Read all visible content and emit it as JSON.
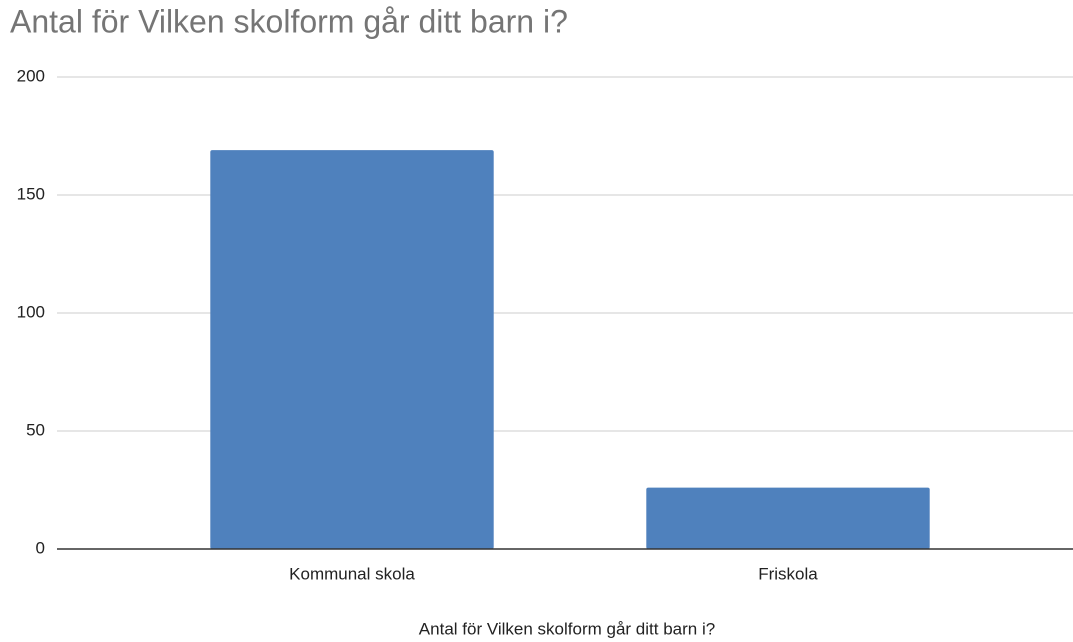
{
  "chart_data": {
    "type": "bar",
    "title": "Antal för Vilken skolform går ditt barn i?",
    "x_label": "Antal för Vilken skolform går ditt barn i?",
    "categories": [
      "Kommunal skola",
      "Friskola"
    ],
    "values": [
      169,
      26
    ],
    "color": "#4f81bd",
    "ylim": [
      0,
      200
    ],
    "yticks": [
      0,
      50,
      100,
      150,
      200
    ],
    "grid": true
  }
}
